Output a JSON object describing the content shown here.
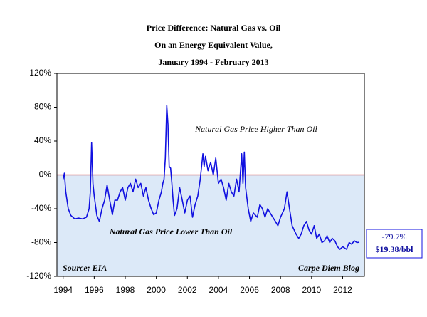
{
  "chart_data": {
    "type": "line",
    "title": [
      "Price Difference: Natural Gas vs. Oil",
      "On an Energy Equivalent Value,",
      "January 1994 - February 2013"
    ],
    "x": [
      1994.0,
      1994.08,
      1994.17,
      1994.33,
      1994.5,
      1994.75,
      1995.0,
      1995.25,
      1995.5,
      1995.67,
      1995.75,
      1995.83,
      1995.92,
      1996.0,
      1996.17,
      1996.33,
      1996.5,
      1996.67,
      1996.83,
      1997.0,
      1997.17,
      1997.33,
      1997.5,
      1997.67,
      1997.83,
      1998.0,
      1998.17,
      1998.33,
      1998.5,
      1998.67,
      1998.83,
      1999.0,
      1999.17,
      1999.33,
      1999.5,
      1999.67,
      1999.83,
      2000.0,
      2000.17,
      2000.33,
      2000.42,
      2000.5,
      2000.58,
      2000.67,
      2000.75,
      2000.83,
      2000.92,
      2001.0,
      2001.08,
      2001.17,
      2001.33,
      2001.5,
      2001.67,
      2001.83,
      2002.0,
      2002.17,
      2002.33,
      2002.5,
      2002.67,
      2002.83,
      2003.0,
      2003.08,
      2003.17,
      2003.33,
      2003.5,
      2003.67,
      2003.83,
      2004.0,
      2004.17,
      2004.33,
      2004.5,
      2004.67,
      2004.83,
      2005.0,
      2005.17,
      2005.33,
      2005.5,
      2005.58,
      2005.67,
      2005.75,
      2005.92,
      2006.08,
      2006.25,
      2006.5,
      2006.67,
      2006.83,
      2007.0,
      2007.17,
      2007.33,
      2007.5,
      2007.67,
      2007.83,
      2008.0,
      2008.25,
      2008.42,
      2008.58,
      2008.75,
      2009.0,
      2009.17,
      2009.33,
      2009.5,
      2009.67,
      2009.83,
      2010.0,
      2010.17,
      2010.33,
      2010.5,
      2010.67,
      2010.83,
      2011.0,
      2011.17,
      2011.33,
      2011.5,
      2011.67,
      2011.83,
      2012.0,
      2012.25,
      2012.42,
      2012.58,
      2012.75,
      2012.92,
      2013.08
    ],
    "values": [
      -5,
      2,
      -20,
      -40,
      -48,
      -52,
      -51,
      -52,
      -50,
      -40,
      -20,
      38,
      -10,
      -25,
      -48,
      -55,
      -40,
      -30,
      -12,
      -30,
      -47,
      -30,
      -30,
      -20,
      -15,
      -30,
      -15,
      -10,
      -20,
      -5,
      -15,
      -10,
      -25,
      -15,
      -30,
      -40,
      -47,
      -45,
      -30,
      -20,
      -10,
      -5,
      20,
      82,
      60,
      10,
      8,
      -10,
      -30,
      -48,
      -40,
      -15,
      -30,
      -45,
      -30,
      -25,
      -50,
      -35,
      -25,
      -5,
      25,
      10,
      22,
      5,
      15,
      0,
      20,
      -10,
      -5,
      -15,
      -30,
      -10,
      -20,
      -25,
      -5,
      -20,
      25,
      -10,
      27,
      -15,
      -40,
      -55,
      -45,
      -50,
      -35,
      -40,
      -50,
      -40,
      -45,
      -50,
      -55,
      -60,
      -50,
      -40,
      -20,
      -40,
      -60,
      -70,
      -75,
      -70,
      -60,
      -55,
      -65,
      -70,
      -60,
      -75,
      -70,
      -80,
      -78,
      -72,
      -80,
      -75,
      -78,
      -85,
      -88,
      -85,
      -88,
      -80,
      -82,
      -78,
      -80,
      -79.7
    ],
    "color": "#1010e0",
    "xlim": [
      1993.6,
      2013.4
    ],
    "xticks": [
      1994,
      1996,
      1998,
      2000,
      2002,
      2004,
      2006,
      2008,
      2010,
      2012
    ],
    "ylim": [
      -120,
      120
    ],
    "yticks": [
      {
        "value": -120,
        "label": "-120%"
      },
      {
        "value": -80,
        "label": "-80%"
      },
      {
        "value": -40,
        "label": "-40%"
      },
      {
        "value": 0,
        "label": "0%"
      },
      {
        "value": 40,
        "label": "40%"
      },
      {
        "value": 80,
        "label": "80%"
      },
      {
        "value": 120,
        "label": "120%"
      }
    ],
    "note_above": "Natural Gas Price Higher Than Oil",
    "note_below": "Natural Gas Price Lower Than Oil",
    "source": "Source: EIA",
    "credit": "Carpe Diem Blog",
    "end_label": [
      "-79.7%",
      "$19.38/bbl"
    ]
  }
}
